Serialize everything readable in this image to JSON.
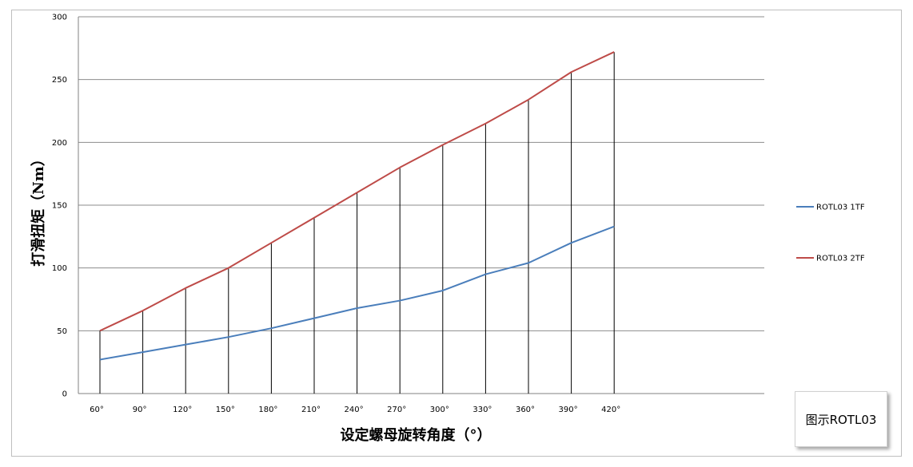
{
  "chart_data": {
    "type": "line",
    "ylabel": "打滑扭矩（Nm）",
    "xlabel": "设定螺母旋转角度（°）",
    "categories": [
      "60°",
      "90°",
      "120°",
      "150°",
      "180°",
      "210°",
      "240°",
      "270°",
      "300°",
      "330°",
      "360°",
      "390°",
      "420°"
    ],
    "ylim": [
      0,
      300
    ],
    "yticks": [
      0,
      50,
      100,
      150,
      200,
      250,
      300
    ],
    "grid": true,
    "legend_position": "right",
    "series": [
      {
        "name": "ROTL03 1TF",
        "color": "#4a7ebb",
        "values": [
          27,
          33,
          39,
          45,
          52,
          60,
          68,
          74,
          82,
          95,
          104,
          120,
          133
        ]
      },
      {
        "name": "ROTL03 2TF",
        "color": "#be4b48",
        "values": [
          50,
          66,
          84,
          100,
          120,
          140,
          160,
          180,
          198,
          215,
          234,
          256,
          272
        ]
      }
    ],
    "drop_lines": true
  },
  "caption": "图示ROTL03"
}
